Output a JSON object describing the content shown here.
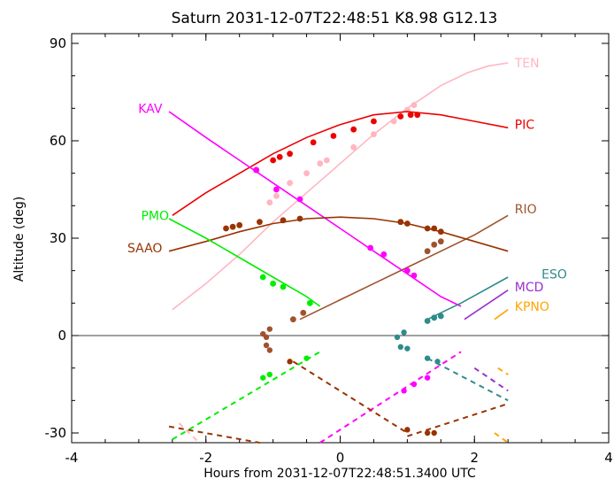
{
  "chart_data": {
    "type": "line",
    "title": "Saturn 2031-12-07T22:48:51  K8.98  G12.13",
    "xlabel": "Hours from 2031-12-07T22:48:51.3400 UTC",
    "ylabel": "Altitude (deg)",
    "xlim": [
      -4,
      4
    ],
    "ylim": [
      -33,
      93
    ],
    "xticks": [
      -4,
      -2,
      0,
      2,
      4
    ],
    "xtick_labels": [
      "-4",
      "-2",
      "0",
      "2",
      "4"
    ],
    "yticks": [
      -30,
      0,
      30,
      60,
      90
    ],
    "ytick_labels": [
      "-30",
      "0",
      "30",
      "60",
      "90"
    ],
    "grid": false,
    "zero_line": true,
    "series": [
      {
        "name": "TEN",
        "color": "#ffb6c1",
        "x": [
          -2.5,
          -2.0,
          -1.5,
          -1.0,
          -0.5,
          0.0,
          0.5,
          1.0,
          1.5,
          1.9,
          2.2,
          2.5
        ],
        "y": [
          8,
          16,
          25,
          35,
          44,
          53,
          62,
          70,
          77,
          81,
          83,
          84
        ],
        "dots": [
          [
            -1.05,
            41
          ],
          [
            -0.95,
            43
          ],
          [
            -0.75,
            47
          ],
          [
            -0.5,
            50
          ],
          [
            -0.3,
            53
          ],
          [
            -0.2,
            54
          ],
          [
            0.2,
            58
          ],
          [
            0.5,
            62
          ],
          [
            0.8,
            66
          ],
          [
            1.0,
            69.5
          ],
          [
            1.1,
            71
          ]
        ],
        "label_x": 2.6,
        "label_y": 84
      },
      {
        "name": "PIC",
        "color": "#ee0000",
        "x": [
          -2.5,
          -2.0,
          -1.5,
          -1.0,
          -0.5,
          0.0,
          0.5,
          1.0,
          1.5,
          2.0,
          2.5
        ],
        "y": [
          37,
          44,
          50,
          56,
          61,
          65,
          68,
          69,
          68,
          66,
          64
        ],
        "dots": [
          [
            -1.25,
            51
          ],
          [
            -1.0,
            54
          ],
          [
            -0.9,
            55
          ],
          [
            -0.75,
            56
          ],
          [
            -0.4,
            59.5
          ],
          [
            -0.1,
            61.5
          ],
          [
            0.2,
            63.5
          ],
          [
            0.5,
            66
          ],
          [
            0.9,
            67.5
          ],
          [
            1.05,
            68
          ],
          [
            1.15,
            68
          ]
        ],
        "label_x": 2.6,
        "label_y": 65
      },
      {
        "name": "RIO",
        "color": "#a0522d",
        "x": [
          -0.6,
          -0.1,
          0.5,
          1.0,
          1.5,
          2.0,
          2.5
        ],
        "y": [
          5,
          10,
          16,
          21,
          26,
          31,
          37
        ],
        "dots": [
          [
            -0.7,
            5
          ],
          [
            -0.55,
            7
          ],
          [
            1.3,
            26
          ],
          [
            1.4,
            28
          ],
          [
            1.5,
            29
          ]
        ],
        "label_x": 2.6,
        "label_y": 39
      },
      {
        "name": "KAV",
        "color": "#ff00ff",
        "x": [
          -2.55,
          -2.0,
          -1.5,
          -1.0,
          -0.5,
          0.0,
          0.5,
          1.0,
          1.5,
          1.8
        ],
        "y": [
          69,
          61,
          54,
          47,
          40,
          33,
          26,
          19,
          12,
          9
        ],
        "dots": [
          [
            -1.25,
            51
          ],
          [
            -0.95,
            45
          ],
          [
            -0.6,
            42
          ],
          [
            0.45,
            27
          ],
          [
            0.65,
            25
          ],
          [
            1.0,
            20
          ],
          [
            1.1,
            18.5
          ]
        ],
        "label_x": -2.65,
        "label_y": 70
      },
      {
        "name": "SAAO",
        "color": "#993300",
        "x": [
          -2.55,
          -2.0,
          -1.5,
          -1.0,
          -0.5,
          0.0,
          0.5,
          1.0,
          1.5,
          2.0,
          2.5
        ],
        "y": [
          26,
          29,
          32,
          34.5,
          36,
          36.5,
          36,
          34.5,
          32,
          29,
          26
        ],
        "dots": [
          [
            -1.7,
            33
          ],
          [
            -1.6,
            33.5
          ],
          [
            -1.5,
            34
          ],
          [
            -1.2,
            35
          ],
          [
            -0.85,
            35.5
          ],
          [
            -0.6,
            36
          ],
          [
            0.9,
            35
          ],
          [
            1.0,
            34.5
          ],
          [
            1.3,
            33
          ],
          [
            1.4,
            33
          ],
          [
            1.5,
            32
          ]
        ],
        "label_x": -2.65,
        "label_y": 27
      },
      {
        "name": "PMO",
        "color": "#00ee00",
        "x": [
          -2.55,
          -2.0,
          -1.5,
          -1.0,
          -0.5,
          -0.3
        ],
        "y": [
          36,
          30,
          24,
          18,
          12,
          9
        ],
        "dots": [
          [
            -1.15,
            18
          ],
          [
            -1.0,
            16
          ],
          [
            -0.85,
            15
          ],
          [
            -0.45,
            10
          ]
        ],
        "label_x": -2.55,
        "label_y": 37
      },
      {
        "name": "ESO",
        "color": "#2e8b8b",
        "x": [
          1.3,
          1.8,
          2.5
        ],
        "y": [
          5,
          10,
          18
        ],
        "dots": [
          [
            1.3,
            4.5
          ],
          [
            1.4,
            5.5
          ],
          [
            1.5,
            6
          ]
        ],
        "label_x": 3.0,
        "label_y": 19
      },
      {
        "name": "MCD",
        "color": "#9932cc",
        "x": [
          1.85,
          2.5
        ],
        "y": [
          5,
          14
        ],
        "dots": [],
        "label_x": 2.6,
        "label_y": 15
      },
      {
        "name": "KPNO",
        "color": "#ffa500",
        "x": [
          2.3,
          2.5
        ],
        "y": [
          5,
          8
        ],
        "dots": [],
        "label_x": 2.6,
        "label_y": 9
      }
    ],
    "below_horizon": [
      {
        "color": "#00ee00",
        "x": [
          -2.5,
          -0.3
        ],
        "y": [
          -32,
          -5
        ],
        "dots": [
          [
            -1.15,
            -13
          ],
          [
            -1.05,
            -12
          ],
          [
            -0.5,
            -7
          ]
        ]
      },
      {
        "color": "#ff00ff",
        "x": [
          -0.3,
          1.8
        ],
        "y": [
          -33,
          -5
        ],
        "dots": [
          [
            0.95,
            -17
          ],
          [
            1.1,
            -15
          ],
          [
            1.3,
            -13
          ]
        ]
      },
      {
        "color": "#993300",
        "x": [
          -0.7,
          1.0
        ],
        "y": [
          -8,
          -30
        ],
        "dots": [
          [
            -0.75,
            -8
          ],
          [
            1.0,
            -29
          ]
        ]
      },
      {
        "color": "#993300",
        "x": [
          -2.55,
          -1.2
        ],
        "y": [
          -28,
          -33
        ],
        "dots": []
      },
      {
        "color": "#993300",
        "x": [
          1.0,
          2.5
        ],
        "y": [
          -31,
          -21
        ],
        "dots": [
          [
            1.3,
            -30
          ],
          [
            1.4,
            -30
          ]
        ]
      },
      {
        "color": "#2e8b8b",
        "x": [
          1.3,
          2.5
        ],
        "y": [
          -7,
          -20
        ],
        "dots": [
          [
            1.3,
            -7
          ],
          [
            1.45,
            -8
          ]
        ]
      },
      {
        "color": "#9932cc",
        "x": [
          2.0,
          2.5
        ],
        "y": [
          -10,
          -17
        ],
        "dots": []
      },
      {
        "color": "#ffa500",
        "x": [
          2.35,
          2.5
        ],
        "y": [
          -10,
          -12
        ],
        "dots": []
      },
      {
        "color": "#ffb6c1",
        "x": [
          -2.4,
          -2.1
        ],
        "y": [
          -27,
          -33
        ],
        "dots": []
      },
      {
        "color": "#ffa500",
        "x": [
          2.3,
          2.5
        ],
        "y": [
          -30,
          -33
        ],
        "dots": []
      }
    ],
    "near_horizon_dots": [
      {
        "color": "#a0522d",
        "points": [
          [
            -1.1,
            -0.5
          ],
          [
            -1.15,
            0.5
          ],
          [
            -1.05,
            2
          ],
          [
            -1.1,
            -3
          ],
          [
            -1.05,
            -4.5
          ]
        ]
      },
      {
        "color": "#2e8b8b",
        "points": [
          [
            0.85,
            -0.5
          ],
          [
            0.9,
            -3.5
          ],
          [
            0.95,
            1
          ],
          [
            1.0,
            -4
          ]
        ]
      }
    ]
  }
}
